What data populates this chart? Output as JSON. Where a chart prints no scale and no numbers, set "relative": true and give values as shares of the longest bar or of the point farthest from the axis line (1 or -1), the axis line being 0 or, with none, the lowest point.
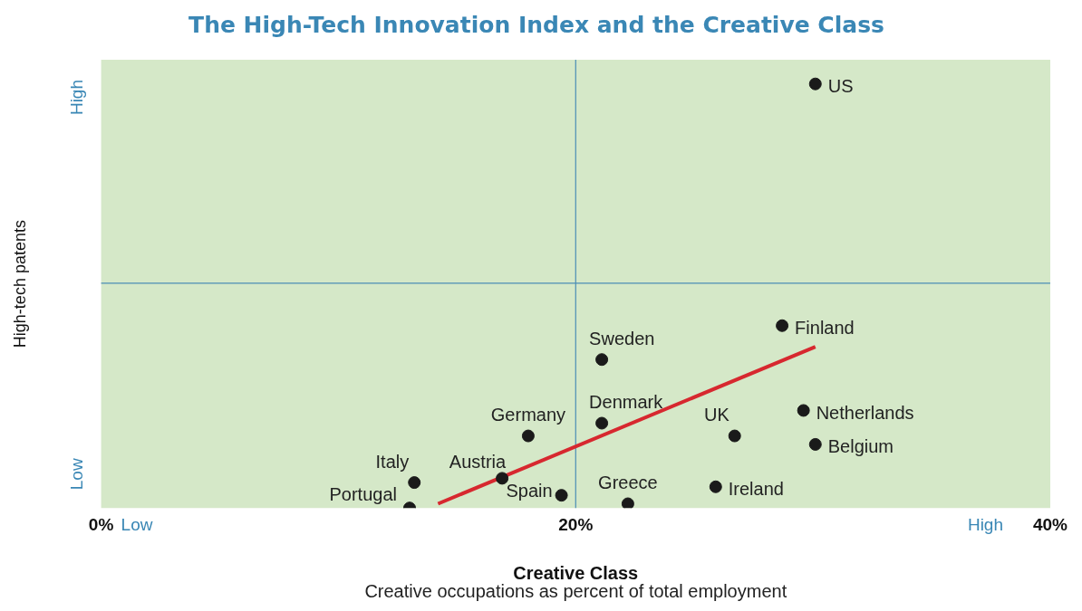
{
  "chart_data": {
    "type": "scatter",
    "title": "The High-Tech Innovation Index and the Creative Class",
    "xlabel": "Creative Class",
    "ylabel": "High-tech patents",
    "annotations": [
      "Low",
      "High",
      "Low",
      "High",
      "Creative occupations as percent of total employment"
    ],
    "relative": true,
    "xlim": [
      0,
      40
    ],
    "xticks": [
      {
        "value": 0,
        "label": "0%"
      },
      {
        "value": 20,
        "label": "20%"
      },
      {
        "value": 40,
        "label": "40%"
      }
    ],
    "grid": false,
    "legend": false,
    "marker": "circle",
    "ref_lines": [
      {
        "axis": "x",
        "value": 20,
        "label": null,
        "color": "#4a8db5"
      },
      {
        "axis": "y",
        "value": 0.53,
        "label": null,
        "color": "#4a8db5"
      }
    ],
    "series": [
      {
        "name": "US",
        "color": "#1a1a1a",
        "x": [
          30.1
        ],
        "values": [
          1.0
        ]
      },
      {
        "name": "Finland",
        "color": "#1a1a1a",
        "x": [
          28.7
        ],
        "values": [
          0.43
        ]
      },
      {
        "name": "Sweden",
        "color": "#1a1a1a",
        "x": [
          21.1
        ],
        "values": [
          0.35
        ]
      },
      {
        "name": "Netherlands",
        "color": "#1a1a1a",
        "x": [
          29.6
        ],
        "values": [
          0.23
        ]
      },
      {
        "name": "Denmark",
        "color": "#1a1a1a",
        "x": [
          21.1
        ],
        "values": [
          0.2
        ]
      },
      {
        "name": "UK",
        "color": "#1a1a1a",
        "x": [
          26.7
        ],
        "values": [
          0.17
        ]
      },
      {
        "name": "Germany",
        "color": "#1a1a1a",
        "x": [
          18.0
        ],
        "values": [
          0.17
        ]
      },
      {
        "name": "Belgium",
        "color": "#1a1a1a",
        "x": [
          30.1
        ],
        "values": [
          0.15
        ]
      },
      {
        "name": "Italy",
        "color": "#1a1a1a",
        "x": [
          13.2
        ],
        "values": [
          0.06
        ]
      },
      {
        "name": "Austria",
        "color": "#1a1a1a",
        "x": [
          16.9
        ],
        "values": [
          0.07
        ]
      },
      {
        "name": "Spain",
        "color": "#1a1a1a",
        "x": [
          19.4
        ],
        "values": [
          0.03
        ]
      },
      {
        "name": "Greece",
        "color": "#1a1a1a",
        "x": [
          22.2
        ],
        "values": [
          0.01
        ]
      },
      {
        "name": "Ireland",
        "color": "#1a1a1a",
        "x": [
          25.9
        ],
        "values": [
          0.05
        ]
      },
      {
        "name": "Portugal",
        "color": "#1a1a1a",
        "x": [
          13.0
        ],
        "values": [
          0.0
        ]
      },
      {
        "type": "line",
        "marker": "none",
        "color": "#d7282f",
        "x": [
          14.2,
          30.1
        ],
        "values": [
          0.01,
          0.38
        ]
      }
    ]
  }
}
